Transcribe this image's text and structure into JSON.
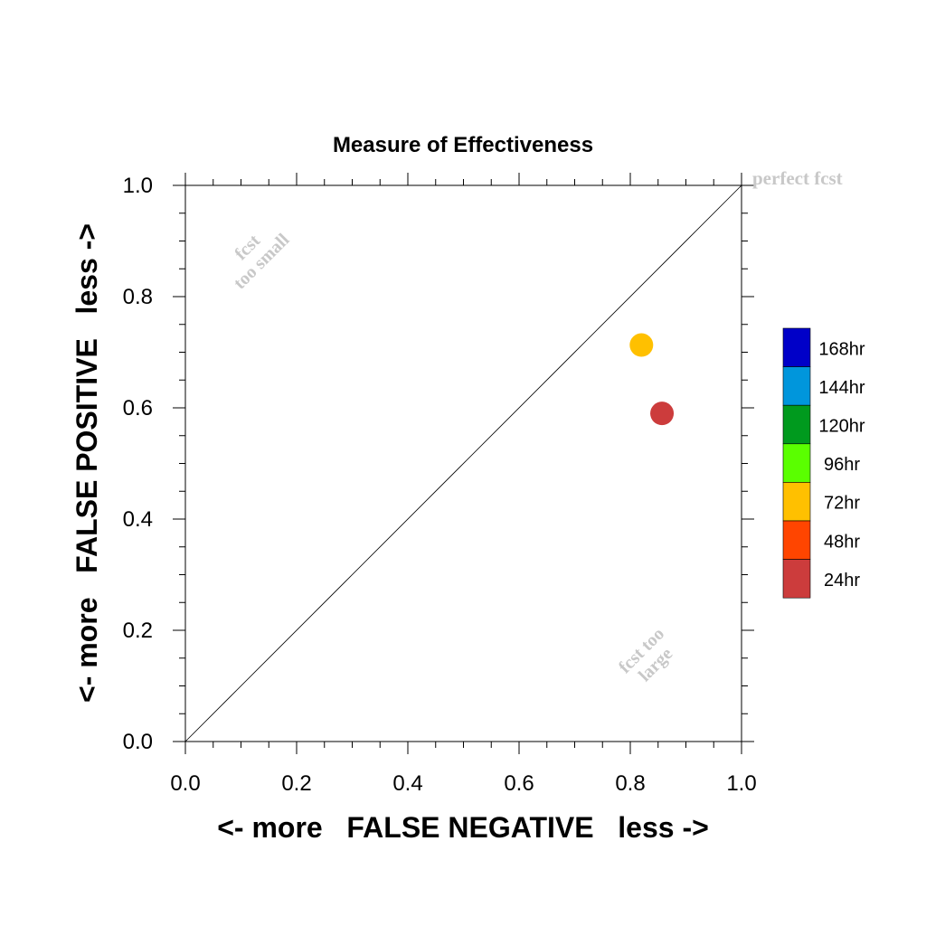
{
  "chart_data": {
    "type": "scatter",
    "title": "Measure of Effectiveness",
    "xlabel": "<- more   FALSE NEGATIVE   less ->",
    "ylabel": "<- more   FALSE POSITIVE   less ->",
    "xlim": [
      0.0,
      1.0
    ],
    "ylim": [
      0.0,
      1.0
    ],
    "x_ticks": [
      "0.0",
      "0.2",
      "0.4",
      "0.6",
      "0.8",
      "1.0"
    ],
    "y_ticks": [
      "0.0",
      "0.2",
      "0.4",
      "0.6",
      "0.8",
      "1.0"
    ],
    "grid": false,
    "reference_line": "diagonal",
    "annotations": {
      "perfect": "perfect fcst",
      "too_small": [
        "fcst",
        "too small"
      ],
      "too_large": [
        "fcst too",
        "large"
      ]
    },
    "legend": {
      "placement": "right",
      "entries": [
        {
          "label": "168hr",
          "color": "#0000c8"
        },
        {
          "label": "144hr",
          "color": "#0096dc"
        },
        {
          "label": "120hr",
          "color": "#009a1e"
        },
        {
          "label": "96hr",
          "color": "#5aff00"
        },
        {
          "label": "72hr",
          "color": "#ffc000"
        },
        {
          "label": "48hr",
          "color": "#ff4500"
        },
        {
          "label": "24hr",
          "color": "#cc3c3c"
        }
      ]
    },
    "points": [
      {
        "series": "72hr",
        "x": 0.82,
        "y": 0.713,
        "color": "#ffc000"
      },
      {
        "series": "24hr",
        "x": 0.857,
        "y": 0.59,
        "color": "#cc3c3c"
      }
    ]
  }
}
